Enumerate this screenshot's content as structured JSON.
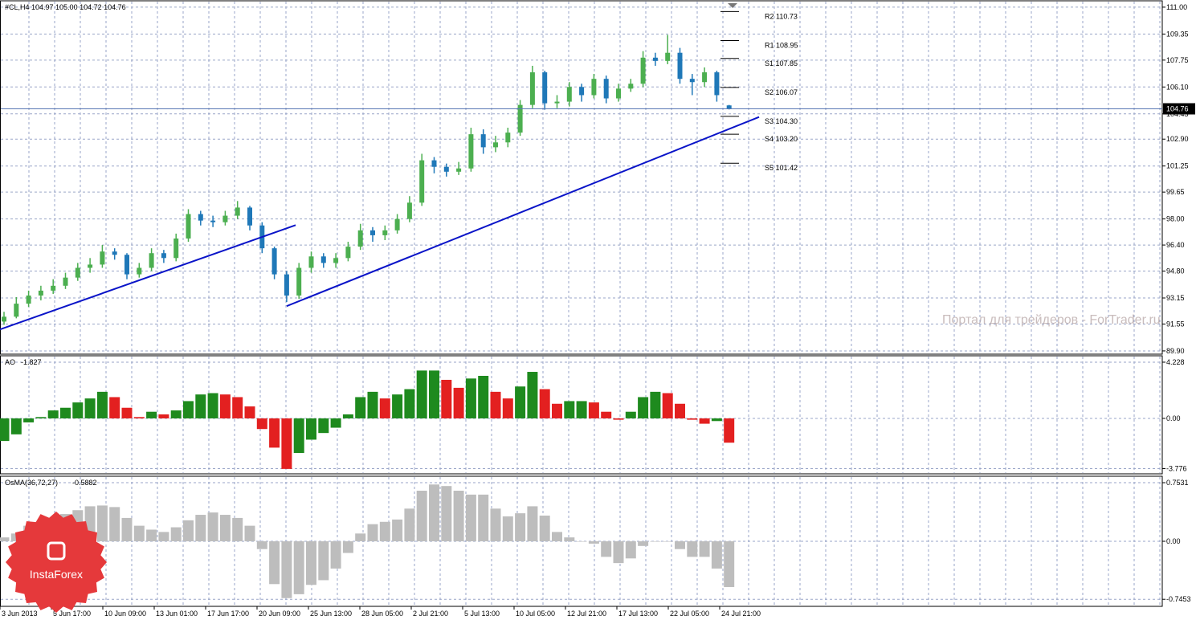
{
  "chart_data": [
    {
      "type": "candlestick",
      "header": "#CL,H4  104.97 105.00 104.72 104.76",
      "ohlc": [
        [
          91.7,
          92.3,
          91.5,
          92.0
        ],
        [
          92.0,
          93.2,
          91.9,
          92.8
        ],
        [
          92.8,
          93.6,
          92.6,
          93.3
        ],
        [
          93.3,
          93.9,
          93.0,
          93.6
        ],
        [
          93.6,
          94.3,
          93.4,
          93.9
        ],
        [
          93.9,
          94.7,
          93.7,
          94.4
        ],
        [
          94.4,
          95.3,
          94.2,
          95.0
        ],
        [
          95.0,
          95.6,
          94.7,
          95.2
        ],
        [
          95.2,
          96.4,
          95.0,
          96.0
        ],
        [
          96.0,
          96.2,
          95.5,
          95.8
        ],
        [
          95.8,
          95.9,
          94.3,
          94.6
        ],
        [
          94.6,
          95.3,
          94.4,
          95.0
        ],
        [
          95.0,
          96.2,
          94.8,
          95.9
        ],
        [
          95.9,
          96.1,
          95.3,
          95.6
        ],
        [
          95.6,
          97.1,
          95.4,
          96.8
        ],
        [
          96.8,
          98.6,
          96.6,
          98.3
        ],
        [
          98.3,
          98.5,
          97.6,
          97.9
        ],
        [
          97.9,
          98.2,
          97.5,
          97.8
        ],
        [
          97.8,
          98.5,
          97.6,
          98.2
        ],
        [
          98.2,
          99.1,
          98.0,
          98.7
        ],
        [
          98.7,
          98.8,
          97.3,
          97.6
        ],
        [
          97.6,
          97.8,
          95.9,
          96.2
        ],
        [
          96.2,
          96.3,
          94.3,
          94.6
        ],
        [
          94.6,
          94.8,
          92.9,
          93.3
        ],
        [
          93.3,
          95.3,
          93.1,
          95.0
        ],
        [
          95.0,
          96.0,
          94.7,
          95.7
        ],
        [
          95.7,
          95.9,
          95.0,
          95.3
        ],
        [
          95.3,
          95.9,
          95.0,
          95.6
        ],
        [
          95.6,
          96.6,
          95.4,
          96.3
        ],
        [
          96.3,
          97.7,
          96.1,
          97.3
        ],
        [
          97.3,
          97.5,
          96.6,
          97.0
        ],
        [
          97.0,
          97.6,
          96.7,
          97.3
        ],
        [
          97.3,
          98.3,
          97.1,
          98.0
        ],
        [
          98.0,
          99.4,
          97.8,
          99.0
        ],
        [
          99.0,
          102.0,
          98.8,
          101.6
        ],
        [
          101.6,
          101.8,
          100.8,
          101.2
        ],
        [
          101.2,
          101.4,
          100.6,
          100.9
        ],
        [
          100.9,
          101.5,
          100.7,
          101.1
        ],
        [
          101.1,
          103.6,
          100.9,
          103.2
        ],
        [
          103.2,
          103.5,
          102.0,
          102.4
        ],
        [
          102.4,
          103.1,
          102.1,
          102.7
        ],
        [
          102.7,
          103.6,
          102.4,
          103.3
        ],
        [
          103.3,
          105.3,
          103.1,
          105.0
        ],
        [
          105.0,
          107.4,
          104.8,
          107.0
        ],
        [
          107.0,
          107.1,
          104.7,
          105.1
        ],
        [
          105.1,
          105.6,
          104.8,
          105.2
        ],
        [
          105.2,
          106.4,
          104.9,
          106.1
        ],
        [
          106.1,
          106.3,
          105.2,
          105.6
        ],
        [
          105.6,
          106.9,
          105.4,
          106.6
        ],
        [
          106.6,
          106.8,
          105.1,
          105.4
        ],
        [
          105.4,
          106.3,
          105.2,
          106.0
        ],
        [
          106.0,
          106.6,
          105.8,
          106.3
        ],
        [
          106.3,
          108.3,
          106.1,
          107.9
        ],
        [
          107.9,
          108.2,
          107.4,
          107.7
        ],
        [
          107.7,
          109.3,
          107.5,
          108.2
        ],
        [
          108.2,
          108.5,
          106.3,
          106.6
        ],
        [
          106.6,
          106.9,
          105.6,
          106.4
        ],
        [
          106.4,
          107.3,
          106.1,
          107.0
        ],
        [
          107.0,
          107.1,
          105.2,
          105.6
        ],
        [
          104.97,
          105.0,
          104.72,
          104.76
        ]
      ],
      "up_color": "#4caf50",
      "down_color": "#1f78b8",
      "ylim": [
        89.7,
        111.39
      ],
      "yticks": [
        {
          "value": 111,
          "label": "111.00"
        },
        109.35,
        107.75,
        {
          "value": 106.1,
          "label": "106.10"
        },
        104.45,
        {
          "value": 102.9,
          "label": "102.90"
        },
        101.25,
        99.65,
        {
          "value": 98,
          "label": "98.00"
        },
        {
          "value": 96.4,
          "label": "96.40"
        },
        {
          "value": 94.8,
          "label": "94.80"
        },
        93.15,
        91.55,
        {
          "value": 89.9,
          "label": "89.90"
        }
      ],
      "grid": true,
      "last_price": 104.76,
      "pivots": [
        {
          "label": "R2 110.73",
          "value": 110.73
        },
        {
          "label": "R1 108.95",
          "value": 108.95
        },
        {
          "label": "S1 107.85",
          "value": 107.85
        },
        {
          "label": "S2 106.07",
          "value": 106.07
        },
        {
          "label": "S3 104.30",
          "value": 104.3
        },
        {
          "label": "S4 103.20",
          "value": 103.2
        },
        {
          "label": "S5 101.42",
          "value": 101.42
        }
      ],
      "trendlines": [
        {
          "x": [
            -0.33,
            23.73
          ],
          "y": [
            91.22,
            97.62
          ]
        },
        {
          "x": [
            23,
            61.44
          ],
          "y": [
            92.65,
            104.26
          ]
        }
      ],
      "trendline_color": "#0a14c8"
    },
    {
      "type": "bar",
      "name": "AO",
      "value": -1.827,
      "values": [
        -1.7,
        -1.2,
        -0.3,
        0.1,
        0.6,
        0.8,
        1.2,
        1.5,
        2.0,
        1.6,
        0.8,
        0.1,
        0.5,
        0.3,
        0.6,
        1.3,
        1.8,
        1.9,
        1.8,
        1.6,
        0.9,
        -0.8,
        -2.2,
        -3.8,
        -2.6,
        -1.6,
        -1.1,
        -0.7,
        0.3,
        1.6,
        2.0,
        1.5,
        1.8,
        2.2,
        3.6,
        3.6,
        2.9,
        2.3,
        3.0,
        3.2,
        2.0,
        1.5,
        2.4,
        3.5,
        2.2,
        1.1,
        1.3,
        1.3,
        1.2,
        0.5,
        -0.1,
        0.5,
        1.6,
        2.0,
        1.9,
        1.1,
        -0.1,
        -0.4,
        -0.2,
        -1.827
      ],
      "up_color": "#1e8a1e",
      "down_color": "#e32020",
      "ylim": [
        -4.17,
        4.71
      ],
      "yticks": [
        4.228,
        {
          "value": 0,
          "label": "0.00"
        },
        -3.776
      ],
      "grid": true
    },
    {
      "type": "bar",
      "name": "OsMA(36,72,27)",
      "value": -0.5882,
      "values": [
        0.05,
        0.1,
        0.2,
        0.25,
        0.3,
        0.35,
        0.4,
        0.45,
        0.46,
        0.44,
        0.3,
        0.2,
        0.15,
        0.12,
        0.18,
        0.27,
        0.34,
        0.37,
        0.34,
        0.3,
        0.2,
        -0.1,
        -0.55,
        -0.73,
        -0.68,
        -0.56,
        -0.5,
        -0.35,
        -0.15,
        0.1,
        0.22,
        0.25,
        0.28,
        0.42,
        0.65,
        0.73,
        0.71,
        0.65,
        0.6,
        0.6,
        0.42,
        0.32,
        0.36,
        0.45,
        0.33,
        0.12,
        0.05,
        0.0,
        -0.03,
        -0.2,
        -0.28,
        -0.22,
        -0.06,
        0.0,
        0.0,
        -0.1,
        -0.2,
        -0.2,
        -0.35,
        -0.5882
      ],
      "color": "#bdbdbd",
      "ylim": [
        -0.836,
        0.836
      ],
      "yticks": [
        0.7531,
        {
          "value": 0,
          "label": "0.00"
        },
        -0.7453
      ],
      "grid": true
    }
  ],
  "x_axis_labels": [
    "3 Jun 2013",
    "5 Jun 17:00",
    "10 Jun 09:00",
    "13 Jun 01:00",
    "17 Jun 17:00",
    "20 Jun 09:00",
    "25 Jun 13:00",
    "28 Jun 05:00",
    "2 Jul 21:00",
    "5 Jul 13:00",
    "10 Jul 05:00",
    "12 Jul 21:00",
    "17 Jul 13:00",
    "22 Jul 05:00",
    "24 Jul 21:00"
  ],
  "watermark": "Портал для трейдеров - ForTrader.ru",
  "logo": "InstaForex"
}
